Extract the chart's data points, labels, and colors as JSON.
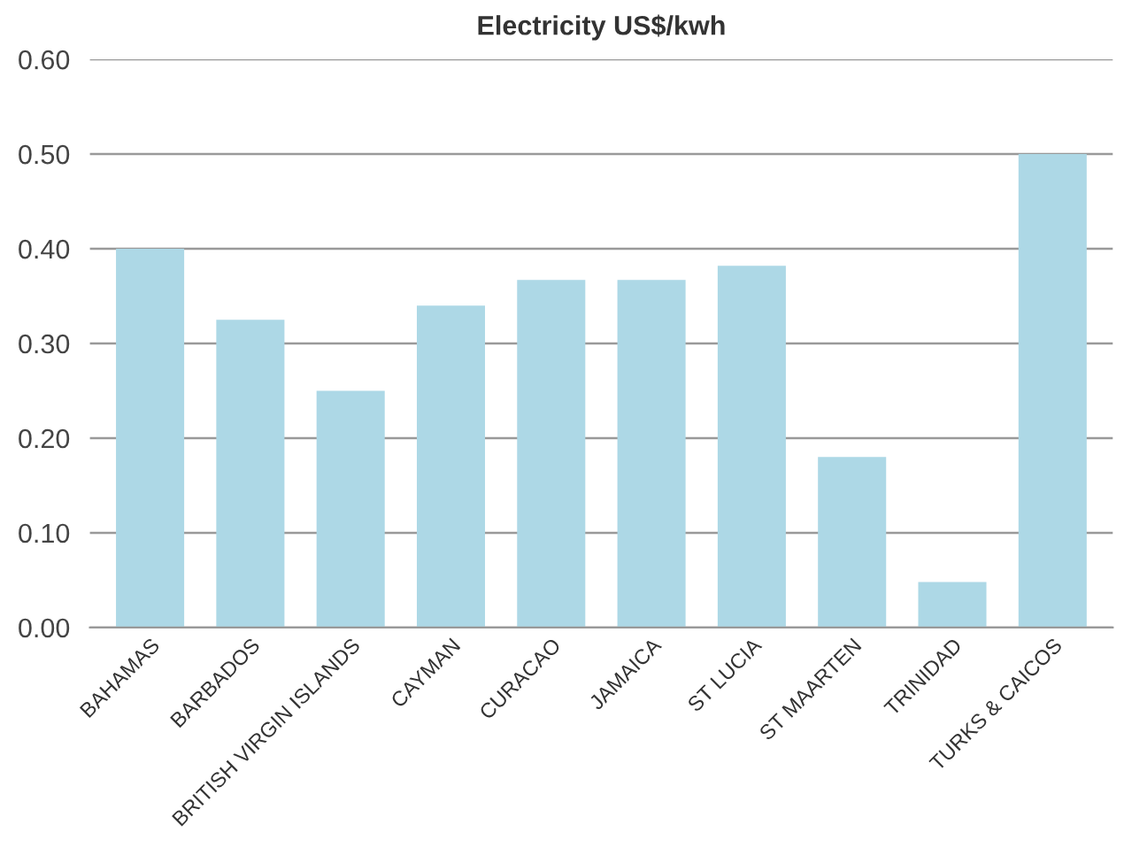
{
  "chart_data": {
    "type": "bar",
    "title": "Electricity US$/kwh",
    "categories": [
      "BAHAMAS",
      "BARBADOS",
      "BRITISH VIRGIN ISLANDS",
      "CAYMAN",
      "CURACAO",
      "JAMAICA",
      "ST LUCIA",
      "ST MAARTEN",
      "TRINIDAD",
      "TURKS & CAICOS"
    ],
    "values": [
      0.4,
      0.325,
      0.25,
      0.34,
      0.367,
      0.367,
      0.382,
      0.18,
      0.048,
      0.5
    ],
    "color": "#add8e6",
    "ylim": [
      0,
      0.6
    ],
    "yticks": [
      {
        "value": 0,
        "label": "0.00"
      },
      {
        "value": 0.1,
        "label": "0.10"
      },
      {
        "value": 0.2,
        "label": "0.20"
      },
      {
        "value": 0.3,
        "label": "0.30"
      },
      {
        "value": 0.4,
        "label": "0.40"
      },
      {
        "value": 0.5,
        "label": "0.50"
      },
      {
        "value": 0.6,
        "label": "0.60"
      }
    ],
    "grid": "y",
    "legend": false
  }
}
